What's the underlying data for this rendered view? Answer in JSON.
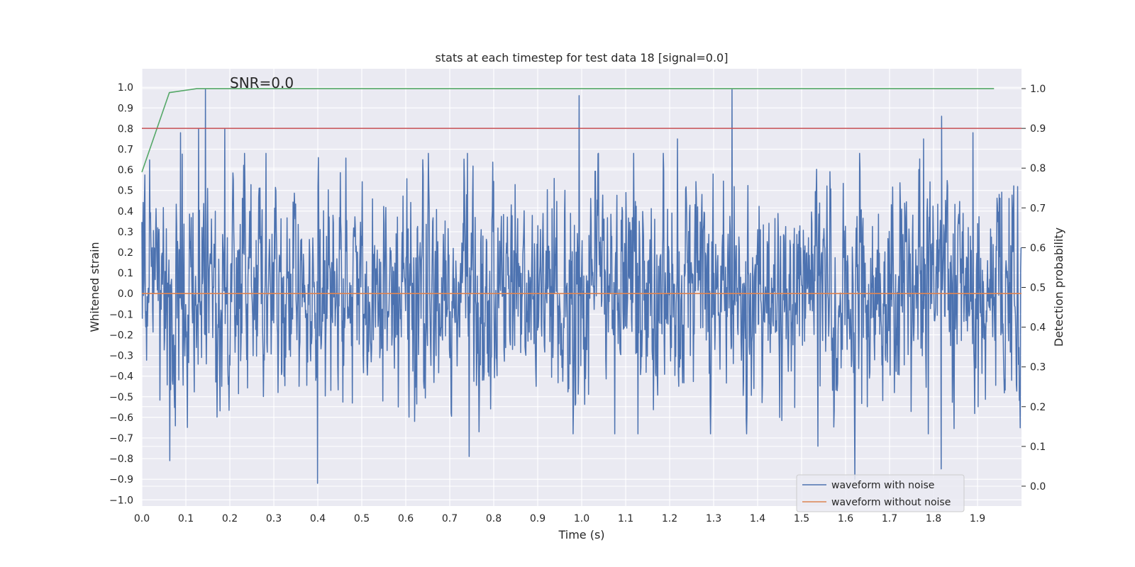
{
  "chart_data": {
    "type": "line",
    "title": "stats at each timestep for test data 18 [signal=0.0]",
    "xlabel": "Time (s)",
    "ylabel": "Whitened strain",
    "y2label": "Detection probability",
    "xlim": [
      0.0,
      2.0
    ],
    "ylim": [
      -1.03,
      1.09
    ],
    "y2lim": [
      -0.05,
      1.05
    ],
    "x_ticks": [
      0.0,
      0.1,
      0.2,
      0.3,
      0.4,
      0.5,
      0.6,
      0.7,
      0.8,
      0.9,
      1.0,
      1.1,
      1.2,
      1.3,
      1.4,
      1.5,
      1.6,
      1.7,
      1.8,
      1.9
    ],
    "x_tick_labels": [
      "0.0",
      "0.1",
      "0.2",
      "0.3",
      "0.4",
      "0.5",
      "0.6",
      "0.7",
      "0.8",
      "0.9",
      "1.0",
      "1.1",
      "1.2",
      "1.3",
      "1.4",
      "1.5",
      "1.6",
      "1.7",
      "1.8",
      "1.9"
    ],
    "y_ticks": [
      -1.0,
      -0.9,
      -0.8,
      -0.7,
      -0.6,
      -0.5,
      -0.4,
      -0.3,
      -0.2,
      -0.1,
      0.0,
      0.1,
      0.2,
      0.3,
      0.4,
      0.5,
      0.6,
      0.7,
      0.8,
      0.9,
      1.0
    ],
    "y_tick_labels": [
      "−1.0",
      "−0.9",
      "−0.8",
      "−0.7",
      "−0.6",
      "−0.5",
      "−0.4",
      "−0.3",
      "−0.2",
      "−0.1",
      "0.0",
      "0.1",
      "0.2",
      "0.3",
      "0.4",
      "0.5",
      "0.6",
      "0.7",
      "0.8",
      "0.9",
      "1.0"
    ],
    "y2_ticks": [
      0.0,
      0.1,
      0.2,
      0.3,
      0.4,
      0.5,
      0.6,
      0.7,
      0.8,
      0.9,
      1.0
    ],
    "y2_tick_labels": [
      "0.0",
      "0.1",
      "0.2",
      "0.3",
      "0.4",
      "0.5",
      "0.6",
      "0.7",
      "0.8",
      "0.9",
      "1.0"
    ],
    "annotation": {
      "text": "SNR=0.0",
      "x": 0.195,
      "y": 1.0
    },
    "threshold": {
      "value": 0.9,
      "axis": "right",
      "color": "#c44e52"
    },
    "series": [
      {
        "name": "waveform with noise",
        "axis": "left",
        "color": "#4c72b0",
        "sample_count": 2048,
        "style": "noise",
        "amplitude_std": 0.27,
        "spikes": [
          {
            "x": 0.063,
            "y": -0.81
          },
          {
            "x": 0.088,
            "y": 0.78
          },
          {
            "x": 0.129,
            "y": 0.8
          },
          {
            "x": 0.145,
            "y": 0.99
          },
          {
            "x": 0.188,
            "y": 0.8
          },
          {
            "x": 0.399,
            "y": -0.92
          },
          {
            "x": 0.62,
            "y": -0.62
          },
          {
            "x": 0.744,
            "y": -0.79
          },
          {
            "x": 0.994,
            "y": 0.96
          },
          {
            "x": 1.218,
            "y": 0.75
          },
          {
            "x": 1.342,
            "y": 0.99
          },
          {
            "x": 1.537,
            "y": -0.74
          },
          {
            "x": 1.621,
            "y": -0.9
          },
          {
            "x": 1.777,
            "y": 0.75
          },
          {
            "x": 1.817,
            "y": -0.85
          },
          {
            "x": 1.818,
            "y": 0.86
          },
          {
            "x": 1.89,
            "y": 0.78
          }
        ]
      },
      {
        "name": "waveform without noise",
        "axis": "left",
        "color": "#dd8452",
        "x": [
          0.0,
          2.0
        ],
        "y": [
          0.0,
          0.0
        ]
      },
      {
        "name": "detection probability",
        "axis": "right",
        "color": "#55a868",
        "x": [
          0.0,
          0.0625,
          0.125,
          0.1875,
          0.25,
          0.5,
          1.0,
          1.5,
          1.9375
        ],
        "y": [
          0.79,
          0.99,
          1.0,
          1.0,
          1.0,
          1.0,
          1.0,
          1.0,
          1.0
        ]
      }
    ],
    "legend": {
      "placement": "lower-right",
      "entries": [
        {
          "label": "waveform with noise",
          "color": "#4c72b0"
        },
        {
          "label": "waveform without noise",
          "color": "#dd8452"
        }
      ]
    },
    "grid": true,
    "background": "#eaeaf2"
  }
}
